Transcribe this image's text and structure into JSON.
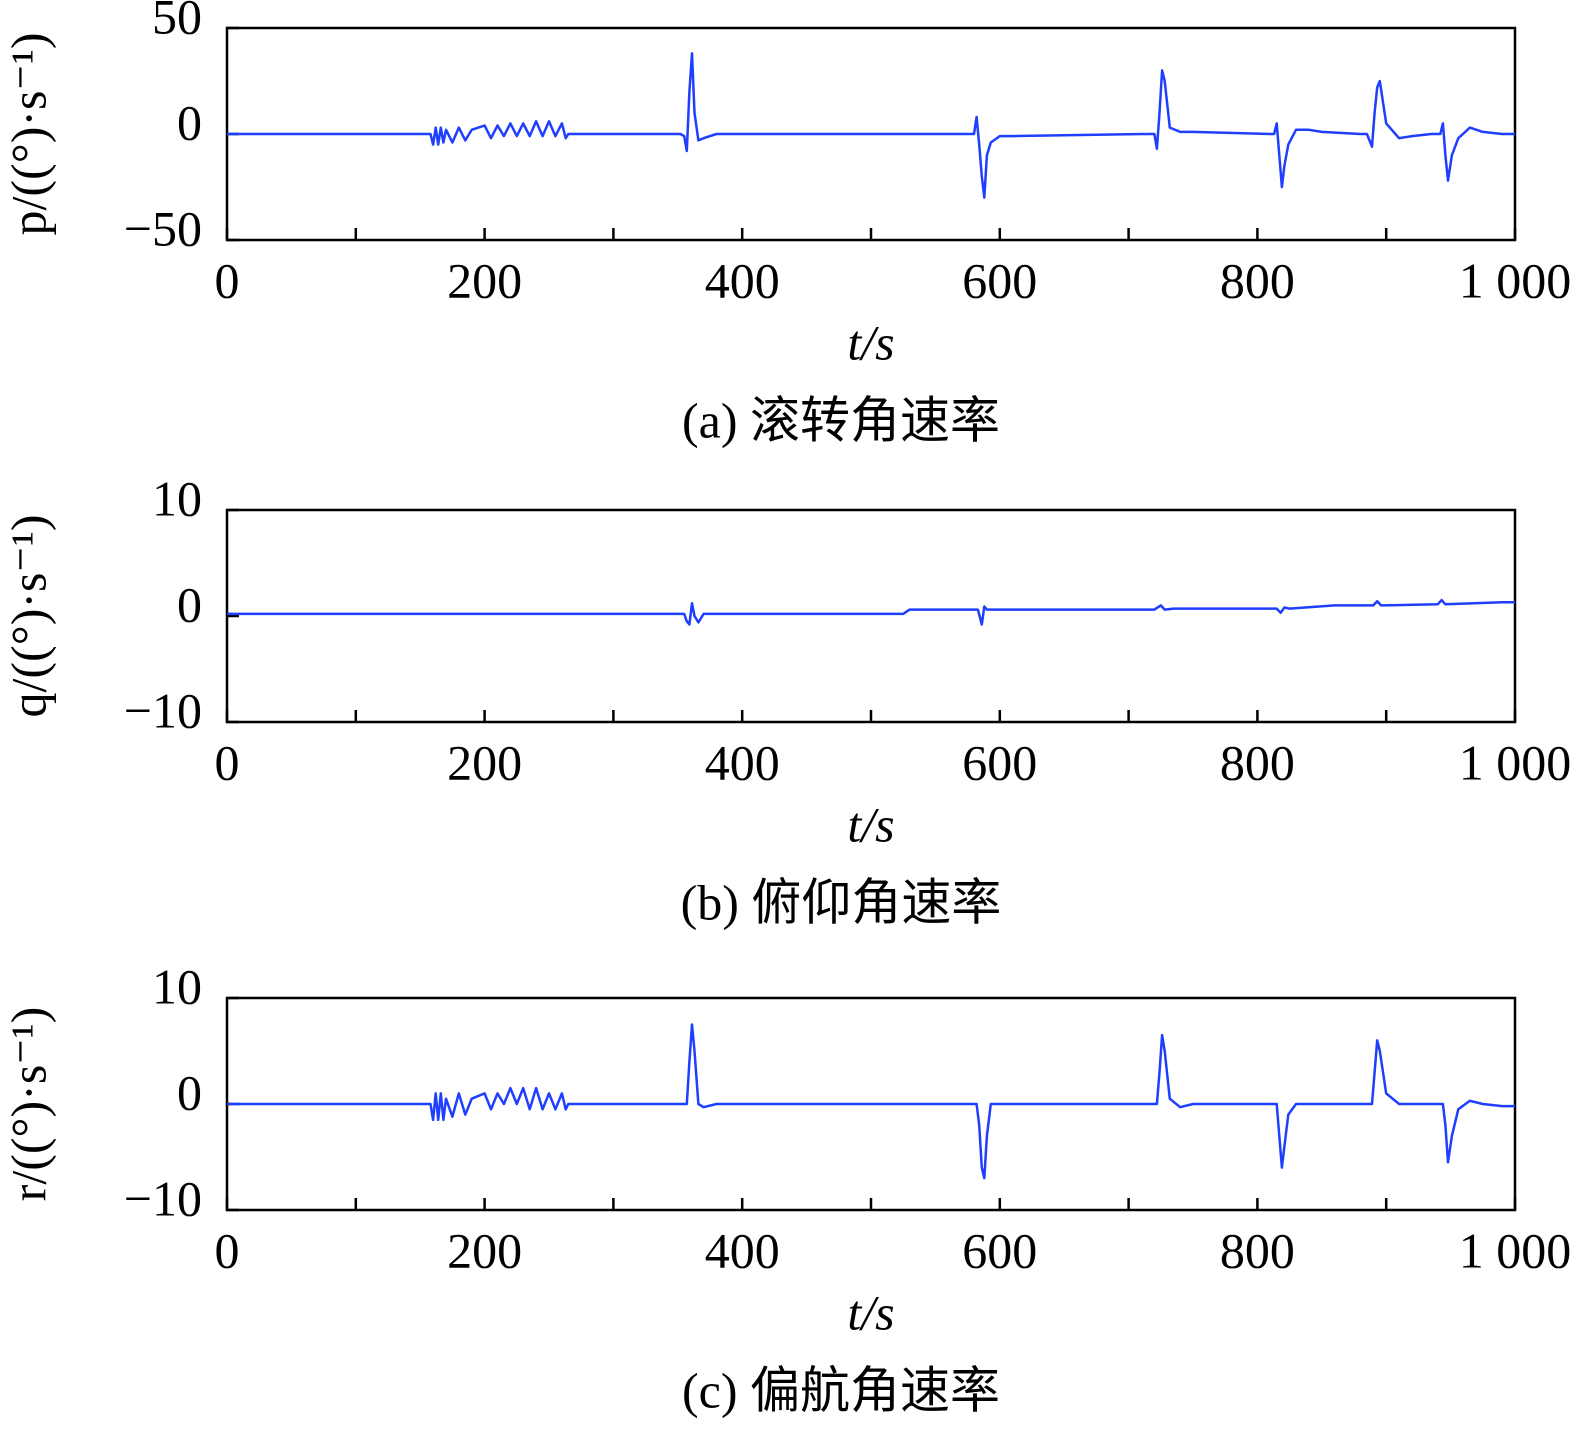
{
  "chart_data": [
    {
      "type": "line",
      "ylabel": "p/((°)·s⁻¹)",
      "xlabel": "t/s",
      "caption": "(a) 滚转角速率",
      "color": "#1f3fff",
      "xlim": [
        0,
        1000
      ],
      "ylim": [
        -50,
        50
      ],
      "xticks": [
        0,
        200,
        400,
        600,
        800,
        {
          "value": 1000,
          "label": "1 000"
        }
      ],
      "xminorticks": [
        100,
        300,
        500,
        700,
        900
      ],
      "yticks": [
        {
          "value": -50,
          "label": "−50"
        },
        0,
        50
      ],
      "x": [
        0,
        158,
        160,
        162,
        164,
        166,
        168,
        170,
        175,
        180,
        185,
        190,
        200,
        205,
        210,
        215,
        220,
        225,
        230,
        235,
        240,
        245,
        250,
        255,
        260,
        263,
        265,
        268,
        352,
        355,
        357,
        359,
        361,
        363,
        366,
        370,
        380,
        575,
        580,
        582,
        584,
        586,
        588,
        590,
        593,
        600,
        610,
        715,
        720,
        722,
        724,
        726,
        728,
        732,
        740,
        750,
        810,
        813,
        815,
        817,
        819,
        821,
        824,
        830,
        840,
        850,
        880,
        885,
        889,
        891,
        893,
        895,
        900,
        910,
        920,
        935,
        940,
        942,
        944,
        946,
        948,
        951,
        956,
        965,
        975,
        990,
        1000
      ],
      "values": [
        0,
        0,
        -5,
        3,
        -5,
        3,
        -4,
        2,
        -4,
        3,
        -3,
        2,
        4,
        -2,
        4,
        -1,
        5,
        -1,
        5,
        -1,
        6,
        -1,
        6,
        -1,
        5,
        -2,
        0,
        0,
        0,
        -1,
        -8,
        20,
        38,
        10,
        -3,
        -2,
        0,
        0,
        0,
        8,
        -5,
        -20,
        -30,
        -10,
        -4,
        -1,
        -1,
        0,
        0,
        -7,
        10,
        30,
        25,
        3,
        1,
        1,
        0,
        0,
        5,
        -10,
        -25,
        -15,
        -5,
        2,
        2,
        1,
        0,
        0,
        -6,
        10,
        22,
        25,
        5,
        -2,
        -1,
        0,
        0,
        0,
        5,
        -10,
        -22,
        -10,
        -2,
        3,
        1,
        0,
        0
      ]
    },
    {
      "type": "line",
      "ylabel": "q/((°)·s⁻¹)",
      "xlabel": "t/s",
      "caption": "(b) 俯仰角速率",
      "color": "#1f3fff",
      "xlim": [
        0,
        1000
      ],
      "ylim": [
        -10,
        10
      ],
      "xticks": [
        0,
        200,
        400,
        600,
        800,
        {
          "value": 1000,
          "label": "1 000"
        }
      ],
      "xminorticks": [
        100,
        300,
        500,
        700,
        900
      ],
      "yticks": [
        {
          "value": -10,
          "label": "−10"
        },
        0,
        10
      ],
      "x": [
        0,
        355,
        357,
        359,
        361,
        363,
        366,
        370,
        525,
        530,
        583,
        586,
        588,
        590,
        600,
        720,
        725,
        728,
        735,
        815,
        818,
        821,
        825,
        860,
        890,
        893,
        896,
        940,
        943,
        946,
        990,
        1000
      ],
      "values": [
        0.2,
        0.2,
        -0.5,
        -0.8,
        1.2,
        0,
        -0.6,
        0.2,
        0.2,
        0.6,
        0.6,
        -0.8,
        0.9,
        0.6,
        0.6,
        0.6,
        1,
        0.6,
        0.7,
        0.7,
        0.3,
        0.8,
        0.7,
        1,
        1,
        1.4,
        1,
        1.1,
        1.5,
        1.1,
        1.3,
        1.3
      ]
    },
    {
      "type": "line",
      "ylabel": "r/((°)·s⁻¹)",
      "xlabel": "t/s",
      "caption": "(c) 偏航角速率",
      "color": "#1f3fff",
      "xlim": [
        0,
        1000
      ],
      "ylim": [
        -10,
        10
      ],
      "xticks": [
        0,
        200,
        400,
        600,
        800,
        {
          "value": 1000,
          "label": "1 000"
        }
      ],
      "xminorticks": [
        100,
        300,
        500,
        700,
        900
      ],
      "yticks": [
        {
          "value": -10,
          "label": "−10"
        },
        0,
        10
      ],
      "x": [
        0,
        158,
        160,
        162,
        164,
        166,
        168,
        170,
        175,
        180,
        185,
        190,
        200,
        205,
        210,
        215,
        220,
        225,
        230,
        235,
        240,
        245,
        250,
        255,
        260,
        263,
        265,
        268,
        352,
        355,
        357,
        359,
        361,
        363,
        366,
        370,
        380,
        575,
        580,
        582,
        584,
        586,
        588,
        590,
        593,
        600,
        610,
        715,
        720,
        722,
        724,
        726,
        728,
        732,
        740,
        750,
        810,
        813,
        815,
        817,
        819,
        821,
        824,
        830,
        840,
        850,
        880,
        885,
        889,
        891,
        893,
        895,
        900,
        910,
        920,
        935,
        940,
        942,
        944,
        946,
        948,
        951,
        956,
        965,
        975,
        990,
        1000
      ],
      "values": [
        0,
        0,
        -1.5,
        1,
        -1.5,
        1,
        -1.5,
        0.5,
        -1.2,
        1,
        -1,
        0.5,
        1,
        -0.5,
        1,
        0,
        1.5,
        0,
        1.5,
        -0.5,
        1.5,
        -0.5,
        1,
        -0.5,
        1,
        -0.5,
        0,
        0,
        0,
        0,
        0,
        4,
        7.5,
        5,
        0,
        -0.3,
        0,
        0,
        0,
        0,
        -2,
        -6,
        -7,
        -3,
        0,
        0,
        0,
        0,
        0,
        0,
        3,
        6.5,
        5,
        0.5,
        -0.3,
        0,
        0,
        0,
        0,
        -3,
        -6,
        -4,
        -1,
        0,
        0,
        0,
        0,
        0,
        0,
        3,
        6,
        5,
        1,
        0,
        0,
        0,
        0,
        0,
        0,
        -2,
        -5.5,
        -3,
        -0.5,
        0.3,
        0,
        -0.2,
        -0.2
      ]
    }
  ]
}
